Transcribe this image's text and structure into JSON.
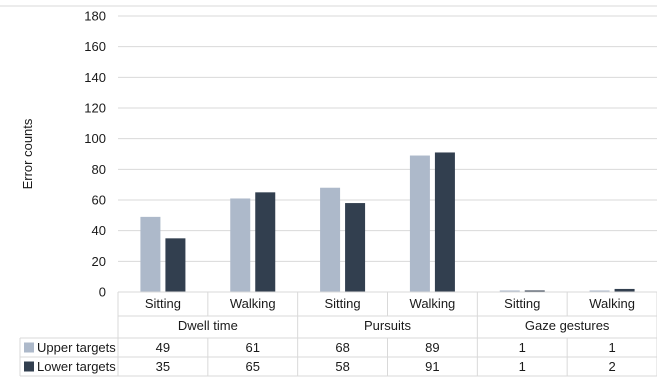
{
  "chart_data": {
    "type": "bar",
    "ylabel": "Error counts",
    "ylim": [
      0,
      180
    ],
    "yticks": [
      0,
      20,
      40,
      60,
      80,
      100,
      120,
      140,
      160,
      180
    ],
    "grid": true,
    "groups": [
      {
        "label": "Dwell time",
        "categories": [
          "Sitting",
          "Walking"
        ]
      },
      {
        "label": "Pursuits",
        "categories": [
          "Sitting",
          "Walking"
        ]
      },
      {
        "label": "Gaze gestures",
        "categories": [
          "Sitting",
          "Walking"
        ]
      }
    ],
    "series": [
      {
        "name": "Upper targets",
        "color": "#adb9ca",
        "values": [
          49,
          61,
          68,
          89,
          1,
          1
        ]
      },
      {
        "name": "Lower targets",
        "color": "#323f4f",
        "values": [
          35,
          65,
          58,
          91,
          1,
          2
        ]
      }
    ],
    "legend": "data-table"
  }
}
